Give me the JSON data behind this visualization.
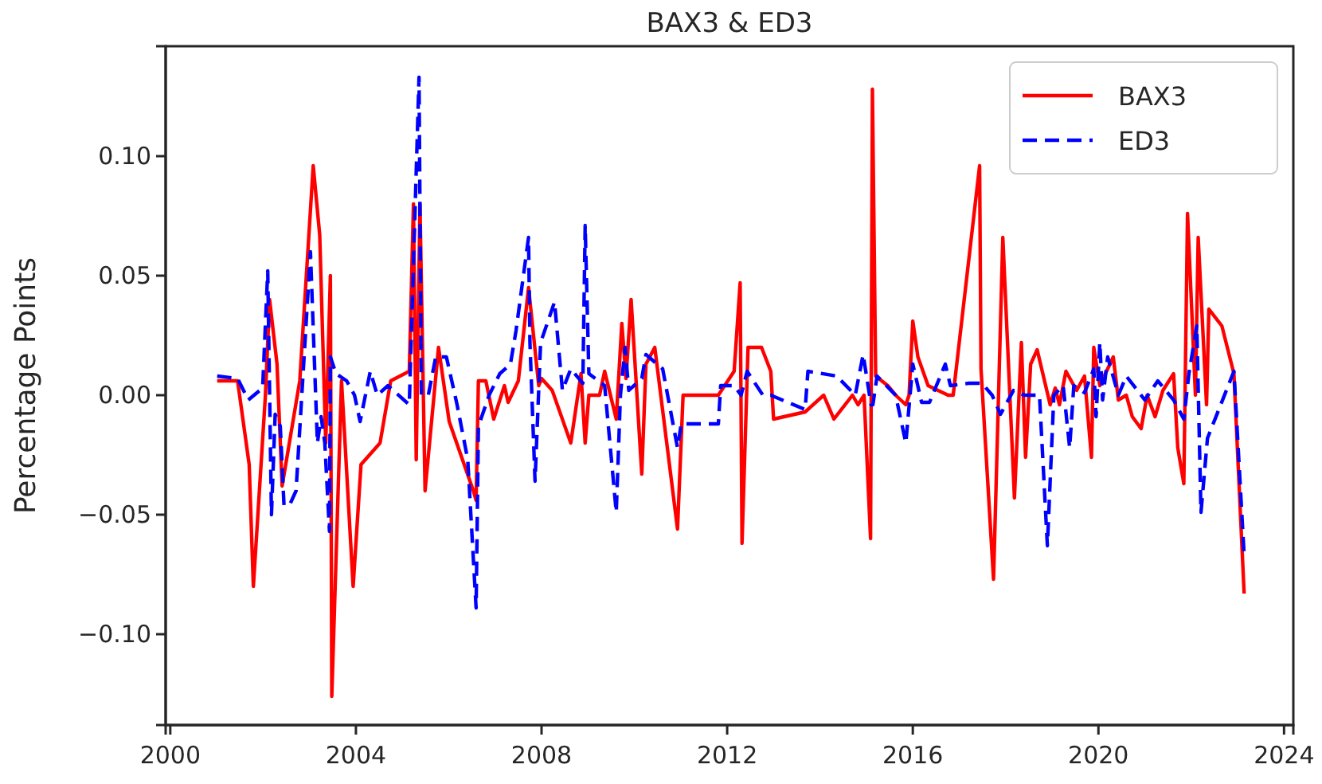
{
  "chart_data": {
    "type": "line",
    "title": "BAX3 & ED3",
    "ylabel": "Percentage Points",
    "legend": "top right",
    "xlim": [
      1999.9,
      2024.2
    ],
    "xticks": [
      2000,
      2004,
      2008,
      2012,
      2016,
      2020,
      2024
    ],
    "ylim": [
      -0.138,
      0.146
    ],
    "yticks": [
      {
        "value": -0.1,
        "label": "−0.10"
      },
      {
        "value": -0.05,
        "label": "−0.05"
      },
      {
        "value": 0,
        "label": "0.00"
      },
      {
        "value": 0.05,
        "label": "0.05"
      },
      {
        "value": 0.1,
        "label": "0.10"
      }
    ],
    "series": [
      {
        "name": "BAX3",
        "color": "#ff0000",
        "line_style": "solid",
        "x": [
          2001.01,
          2001.45,
          2001.7,
          2001.79,
          2002.05,
          2002.14,
          2002.3,
          2002.41,
          2002.79,
          2003.08,
          2003.22,
          2003.35,
          2003.45,
          2003.48,
          2003.69,
          2003.94,
          2004.11,
          2004.52,
          2004.75,
          2005.15,
          2005.24,
          2005.3,
          2005.38,
          2005.49,
          2005.78,
          2006.01,
          2006.53,
          2006.59,
          2006.64,
          2006.8,
          2006.97,
          2007.2,
          2007.28,
          2007.5,
          2007.72,
          2007.94,
          2008.0,
          2008.23,
          2008.63,
          2008.85,
          2008.94,
          2009.02,
          2009.25,
          2009.36,
          2009.61,
          2009.73,
          2009.82,
          2009.93,
          2010.16,
          2010.25,
          2010.44,
          2010.93,
          2011.05,
          2011.81,
          2012.15,
          2012.28,
          2012.32,
          2012.45,
          2012.74,
          2012.94,
          2013.0,
          2013.68,
          2014.08,
          2014.3,
          2014.7,
          2014.82,
          2014.95,
          2015.09,
          2015.13,
          2015.2,
          2015.46,
          2015.63,
          2015.85,
          2015.92,
          2016.0,
          2016.11,
          2016.33,
          2016.76,
          2016.87,
          2017.44,
          2017.47,
          2017.74,
          2017.94,
          2018.19,
          2018.34,
          2018.43,
          2018.54,
          2018.68,
          2018.96,
          2019.07,
          2019.16,
          2019.3,
          2019.53,
          2019.7,
          2019.85,
          2019.9,
          2020.03,
          2020.32,
          2020.43,
          2020.6,
          2020.73,
          2020.92,
          2021.05,
          2021.22,
          2021.39,
          2021.62,
          2021.71,
          2021.84,
          2021.92,
          2022.09,
          2022.15,
          2022.33,
          2022.38,
          2022.66,
          2022.92,
          2023.14
        ],
        "values": [
          0.006,
          0.006,
          -0.029,
          -0.08,
          0,
          0.04,
          0.013,
          -0.038,
          0.006,
          0.096,
          0.067,
          -0.02,
          0.05,
          -0.126,
          0.006,
          -0.08,
          -0.029,
          -0.02,
          0.006,
          0.01,
          0.08,
          -0.027,
          0.08,
          -0.04,
          0.02,
          -0.011,
          -0.04,
          -0.044,
          0.006,
          0.006,
          -0.01,
          0.004,
          -0.003,
          0.006,
          0.045,
          0.004,
          0.007,
          0.002,
          -0.02,
          0.009,
          -0.02,
          0,
          0,
          0.01,
          -0.01,
          0.03,
          0.007,
          0.04,
          -0.033,
          0.013,
          0.02,
          -0.056,
          0,
          0,
          0.01,
          0.047,
          -0.062,
          0.02,
          0.02,
          0.01,
          -0.01,
          -0.007,
          0,
          -0.01,
          0,
          -0.004,
          0,
          -0.06,
          0.128,
          0.008,
          0.004,
          0,
          -0.004,
          0,
          0.031,
          0.016,
          0.004,
          0,
          0,
          0.096,
          0.011,
          -0.077,
          0.066,
          -0.043,
          0.022,
          -0.026,
          0.013,
          0.019,
          -0.004,
          0.003,
          -0.004,
          0.01,
          0.002,
          0.008,
          -0.026,
          0.02,
          0.004,
          0.016,
          -0.002,
          0,
          -0.009,
          -0.014,
          0,
          -0.009,
          0.002,
          0.009,
          -0.022,
          -0.037,
          0.076,
          0,
          0.066,
          -0.004,
          0.036,
          0.029,
          0.009,
          -0.083
        ]
      },
      {
        "name": "ED3",
        "color": "#0000ff",
        "line_style": "dashed",
        "x": [
          2001.01,
          2001.45,
          2001.68,
          2001.99,
          2002.1,
          2002.18,
          2002.26,
          2002.37,
          2002.45,
          2002.57,
          2002.71,
          2003.02,
          2003.17,
          2003.25,
          2003.33,
          2003.43,
          2003.45,
          2003.57,
          2003.8,
          2003.97,
          2004.09,
          2004.31,
          2004.46,
          2004.69,
          2005.15,
          2005.36,
          2005.41,
          2005.56,
          2005.72,
          2005.95,
          2006.18,
          2006.41,
          2006.59,
          2006.64,
          2006.87,
          2007.1,
          2007.33,
          2007.45,
          2007.72,
          2007.75,
          2007.86,
          2007.98,
          2008.28,
          2008.45,
          2008.63,
          2008.89,
          2008.94,
          2009.02,
          2009.36,
          2009.61,
          2009.7,
          2009.8,
          2009.88,
          2010.16,
          2010.25,
          2010.61,
          2010.93,
          2011.01,
          2011.81,
          2011.86,
          2012.15,
          2012.3,
          2012.43,
          2012.77,
          2012.94,
          2013.68,
          2013.74,
          2014.36,
          2014.76,
          2014.93,
          2015.1,
          2015.14,
          2015.23,
          2015.63,
          2015.85,
          2016.0,
          2016.19,
          2016.36,
          2016.7,
          2016.81,
          2017.21,
          2017.49,
          2017.71,
          2017.89,
          2018.17,
          2018.4,
          2018.73,
          2018.9,
          2019.04,
          2019.24,
          2019.38,
          2019.47,
          2019.7,
          2019.9,
          2019.95,
          2020.03,
          2020.09,
          2020.2,
          2020.43,
          2020.6,
          2021.0,
          2021.28,
          2021.62,
          2021.84,
          2021.95,
          2022.12,
          2022.21,
          2022.35,
          2022.92,
          2023.14
        ],
        "values": [
          0.008,
          0.007,
          -0.002,
          0.003,
          0.052,
          -0.05,
          -0.008,
          -0.013,
          -0.046,
          -0.046,
          -0.04,
          0.06,
          -0.02,
          -0.009,
          -0.02,
          -0.057,
          0.016,
          0.009,
          0.006,
          0,
          -0.011,
          0.01,
          0,
          0.004,
          -0.004,
          0.133,
          0,
          0,
          0.016,
          0.016,
          -0.004,
          -0.027,
          -0.089,
          -0.013,
          0,
          0.009,
          0.013,
          0.027,
          0.066,
          0.022,
          -0.036,
          0.022,
          0.039,
          0.002,
          0.011,
          0.005,
          0.071,
          0.009,
          0.004,
          -0.049,
          0,
          0.02,
          0.002,
          0.007,
          0.017,
          0.011,
          -0.022,
          -0.012,
          -0.012,
          0.004,
          0.004,
          0,
          0.01,
          0,
          0,
          -0.006,
          0.01,
          0.008,
          0,
          0.017,
          -0.004,
          -0.004,
          0.008,
          0,
          -0.02,
          0.013,
          -0.003,
          -0.003,
          0.013,
          0.004,
          0.005,
          0.005,
          0,
          -0.008,
          0.002,
          0,
          0,
          -0.063,
          0,
          0.004,
          -0.022,
          0.004,
          0.001,
          0.011,
          -0.009,
          0.022,
          -0.002,
          0.016,
          0,
          0.008,
          -0.002,
          0.006,
          -0.002,
          -0.01,
          0.009,
          0.029,
          -0.049,
          -0.018,
          0.01,
          -0.067
        ]
      }
    ]
  }
}
